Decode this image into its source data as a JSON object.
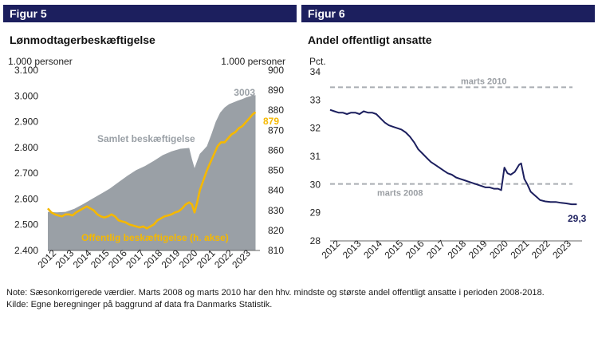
{
  "figures": [
    {
      "label": "Figur 5",
      "title": "Lønmodtagerbeskæftigelse"
    },
    {
      "label": "Figur 6",
      "title": "Andel offentligt ansatte"
    }
  ],
  "notes": {
    "note": "Note:  Sæsonkorrigerede værdier. Marts 2008 og marts 2010 har den hhv. mindste og største andel offentligt ansatte i perioden 2008-2018.",
    "source": "Kilde:  Egne beregninger på baggrund af data fra Danmarks Statistik."
  },
  "colors": {
    "header": "#1c1f5e",
    "area": "#9aa0a6",
    "public": "#f5b800",
    "line6": "#1c1f5e",
    "ref": "#a9adb2"
  },
  "chart_data": [
    {
      "type": "area",
      "x_tick_labels": [
        "2012",
        "2013",
        "2014",
        "2015",
        "2016",
        "2017",
        "2018",
        "2019",
        "2020",
        "2021",
        "2022",
        "2023"
      ],
      "left_axis": {
        "unit": "1.000 personer",
        "ylim": [
          2400,
          3100
        ],
        "ticks": [
          "2.400",
          "2.500",
          "2.600",
          "2.700",
          "2.800",
          "2.900",
          "3.000",
          "3.100"
        ]
      },
      "right_axis": {
        "unit": "1.000 personer",
        "ylim": [
          810,
          900
        ],
        "ticks": [
          "810",
          "820",
          "830",
          "840",
          "850",
          "860",
          "870",
          "880",
          "890",
          "900"
        ]
      },
      "grid": false,
      "series": [
        {
          "name": "Samlet beskæftigelse",
          "axis": "left",
          "x": [
            2012.0,
            2012.5,
            2013.0,
            2013.5,
            2014.0,
            2014.5,
            2015.0,
            2015.5,
            2016.0,
            2016.5,
            2017.0,
            2017.5,
            2018.0,
            2018.5,
            2019.0,
            2019.5,
            2020.0,
            2020.15,
            2020.3,
            2020.45,
            2020.6,
            2020.8,
            2021.0,
            2021.25,
            2021.5,
            2021.75,
            2022.0,
            2022.25,
            2022.5,
            2022.75,
            2023.0,
            2023.25,
            2023.5,
            2023.75
          ],
          "values": [
            2550,
            2548,
            2550,
            2562,
            2580,
            2600,
            2620,
            2640,
            2665,
            2690,
            2712,
            2728,
            2748,
            2770,
            2785,
            2795,
            2798,
            2755,
            2720,
            2748,
            2775,
            2790,
            2805,
            2850,
            2900,
            2935,
            2955,
            2968,
            2975,
            2982,
            2988,
            2995,
            3000,
            3003
          ]
        },
        {
          "name": "Offentlig beskæftigelse (h. akse)",
          "axis": "right",
          "x": [
            2012.0,
            2012.2,
            2012.4,
            2012.6,
            2012.8,
            2013.0,
            2013.2,
            2013.4,
            2013.6,
            2013.8,
            2014.0,
            2014.2,
            2014.4,
            2014.6,
            2014.8,
            2015.0,
            2015.2,
            2015.4,
            2015.6,
            2015.8,
            2016.0,
            2016.2,
            2016.4,
            2016.6,
            2016.8,
            2017.0,
            2017.2,
            2017.4,
            2017.6,
            2017.8,
            2018.0,
            2018.2,
            2018.4,
            2018.6,
            2018.8,
            2019.0,
            2019.2,
            2019.4,
            2019.6,
            2019.8,
            2020.0,
            2020.15,
            2020.3,
            2020.45,
            2020.6,
            2020.8,
            2021.0,
            2021.2,
            2021.4,
            2021.6,
            2021.8,
            2022.0,
            2022.2,
            2022.4,
            2022.6,
            2022.8,
            2023.0,
            2023.2,
            2023.4,
            2023.6,
            2023.75
          ],
          "values": [
            831,
            829,
            828,
            827.5,
            827,
            828,
            828,
            827.5,
            829,
            830,
            831,
            832,
            831,
            830,
            828,
            827,
            826.5,
            827,
            828,
            827,
            825,
            824.5,
            824,
            823,
            822.5,
            822,
            821.5,
            822,
            821,
            822,
            823,
            825,
            826,
            827,
            827.5,
            828,
            829,
            829.5,
            831,
            833,
            834,
            833,
            829,
            834,
            840,
            845,
            850,
            854,
            858,
            862,
            864,
            864,
            866,
            868,
            869,
            871,
            872,
            874,
            876,
            878,
            879
          ]
        }
      ],
      "annotations": [
        "3003",
        "879"
      ]
    },
    {
      "type": "line",
      "x_tick_labels": [
        "2012",
        "2013",
        "2014",
        "2015",
        "2016",
        "2017",
        "2018",
        "2019",
        "2020",
        "2021",
        "2022",
        "2023"
      ],
      "y_axis": {
        "unit": "Pct.",
        "ylim": [
          28,
          34
        ],
        "ticks": [
          "28",
          "29",
          "30",
          "31",
          "32",
          "33",
          "34"
        ]
      },
      "grid": false,
      "reference_lines": [
        {
          "label": "marts 2010",
          "value": 33.45
        },
        {
          "label": "marts 2008",
          "value": 30.02
        }
      ],
      "series": [
        {
          "x": [
            2012.0,
            2012.2,
            2012.4,
            2012.6,
            2012.8,
            2013.0,
            2013.2,
            2013.4,
            2013.6,
            2013.8,
            2014.0,
            2014.2,
            2014.4,
            2014.6,
            2014.8,
            2015.0,
            2015.2,
            2015.4,
            2015.6,
            2015.8,
            2016.0,
            2016.2,
            2016.4,
            2016.6,
            2016.8,
            2017.0,
            2017.2,
            2017.4,
            2017.6,
            2017.8,
            2018.0,
            2018.2,
            2018.4,
            2018.6,
            2018.8,
            2019.0,
            2019.2,
            2019.4,
            2019.6,
            2019.8,
            2020.0,
            2020.15,
            2020.3,
            2020.45,
            2020.6,
            2020.8,
            2021.0,
            2021.1,
            2021.25,
            2021.4,
            2021.55,
            2021.7,
            2021.85,
            2022.0,
            2022.25,
            2022.5,
            2022.75,
            2023.0,
            2023.25,
            2023.5,
            2023.75
          ],
          "values": [
            32.65,
            32.6,
            32.55,
            32.55,
            32.5,
            32.55,
            32.55,
            32.5,
            32.6,
            32.55,
            32.55,
            32.5,
            32.35,
            32.2,
            32.1,
            32.05,
            32.0,
            31.95,
            31.85,
            31.7,
            31.5,
            31.25,
            31.1,
            30.95,
            30.8,
            30.7,
            30.6,
            30.5,
            30.4,
            30.35,
            30.25,
            30.2,
            30.15,
            30.1,
            30.05,
            30.0,
            29.95,
            29.9,
            29.9,
            29.85,
            29.85,
            29.8,
            30.6,
            30.4,
            30.35,
            30.45,
            30.7,
            30.75,
            30.2,
            30.0,
            29.75,
            29.65,
            29.55,
            29.45,
            29.4,
            29.38,
            29.38,
            29.35,
            29.33,
            29.3,
            29.3
          ]
        }
      ],
      "annotations": [
        "29,3"
      ]
    }
  ]
}
